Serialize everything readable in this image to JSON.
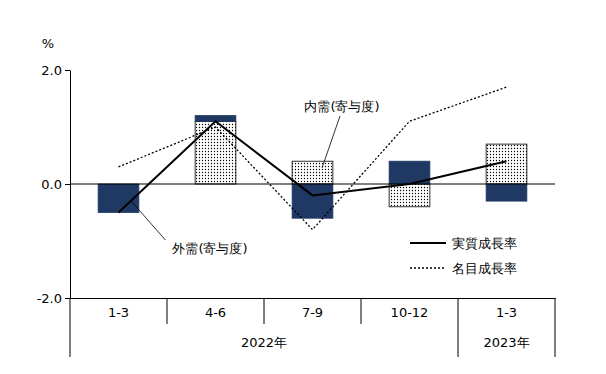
{
  "chart_data": {
    "type": "bar",
    "stacked": true,
    "y_label": "%",
    "categories": [
      "1-3",
      "4-6",
      "7-9",
      "10-12",
      "1-3"
    ],
    "groups": [
      "2022年",
      "2022年",
      "2022年",
      "2022年",
      "2023年"
    ],
    "ylim": [
      -2,
      2
    ],
    "yticks": [
      {
        "value": -2,
        "label": "-2.0"
      },
      {
        "value": 0,
        "label": "0.0"
      },
      {
        "value": 2,
        "label": "2.0"
      }
    ],
    "legend": "lower right",
    "series": [
      {
        "name": "内需(寄与度)",
        "type": "bar",
        "color": "#000000",
        "marker": "dot",
        "values": [
          0.0,
          1.1,
          0.4,
          -0.4,
          0.7
        ]
      },
      {
        "name": "外需(寄与度)",
        "type": "bar",
        "color": "#1f3864",
        "values": [
          -0.5,
          0.1,
          -0.6,
          0.4,
          -0.3
        ]
      },
      {
        "name": "実質成長率",
        "type": "line",
        "color": "#000000",
        "line_style": "solid",
        "values": [
          -0.5,
          1.1,
          -0.2,
          0.0,
          0.4
        ]
      },
      {
        "name": "名目成長率",
        "type": "line",
        "color": "#000000",
        "line_style": "dotted",
        "values": [
          0.3,
          1.0,
          -0.8,
          1.1,
          1.7
        ]
      }
    ]
  }
}
